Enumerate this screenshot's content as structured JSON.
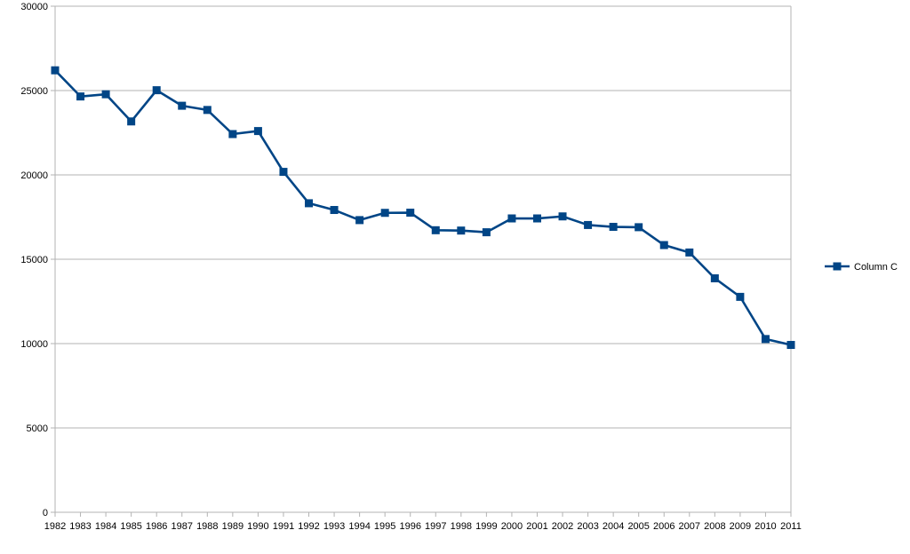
{
  "chart_data": {
    "type": "line",
    "title": "",
    "xlabel": "",
    "ylabel": "",
    "ylim": [
      0,
      30000
    ],
    "yticks": [
      0,
      5000,
      10000,
      15000,
      20000,
      25000,
      30000
    ],
    "grid": true,
    "legend_position": "right",
    "categories": [
      "1982",
      "1983",
      "1984",
      "1985",
      "1986",
      "1987",
      "1988",
      "1989",
      "1990",
      "1991",
      "1992",
      "1993",
      "1994",
      "1995",
      "1996",
      "1997",
      "1998",
      "1999",
      "2000",
      "2001",
      "2002",
      "2003",
      "2004",
      "2005",
      "2006",
      "2007",
      "2008",
      "2009",
      "2010",
      "2011"
    ],
    "series": [
      {
        "name": "Column C",
        "color": "#004586",
        "marker": "square",
        "values": [
          26200,
          24650,
          24780,
          23170,
          25020,
          24100,
          23850,
          22420,
          22600,
          20180,
          18320,
          17920,
          17320,
          17750,
          17760,
          16720,
          16700,
          16600,
          17420,
          17420,
          17540,
          17030,
          16920,
          16900,
          15840,
          15400,
          13870,
          12770,
          10270,
          9920
        ]
      }
    ]
  }
}
